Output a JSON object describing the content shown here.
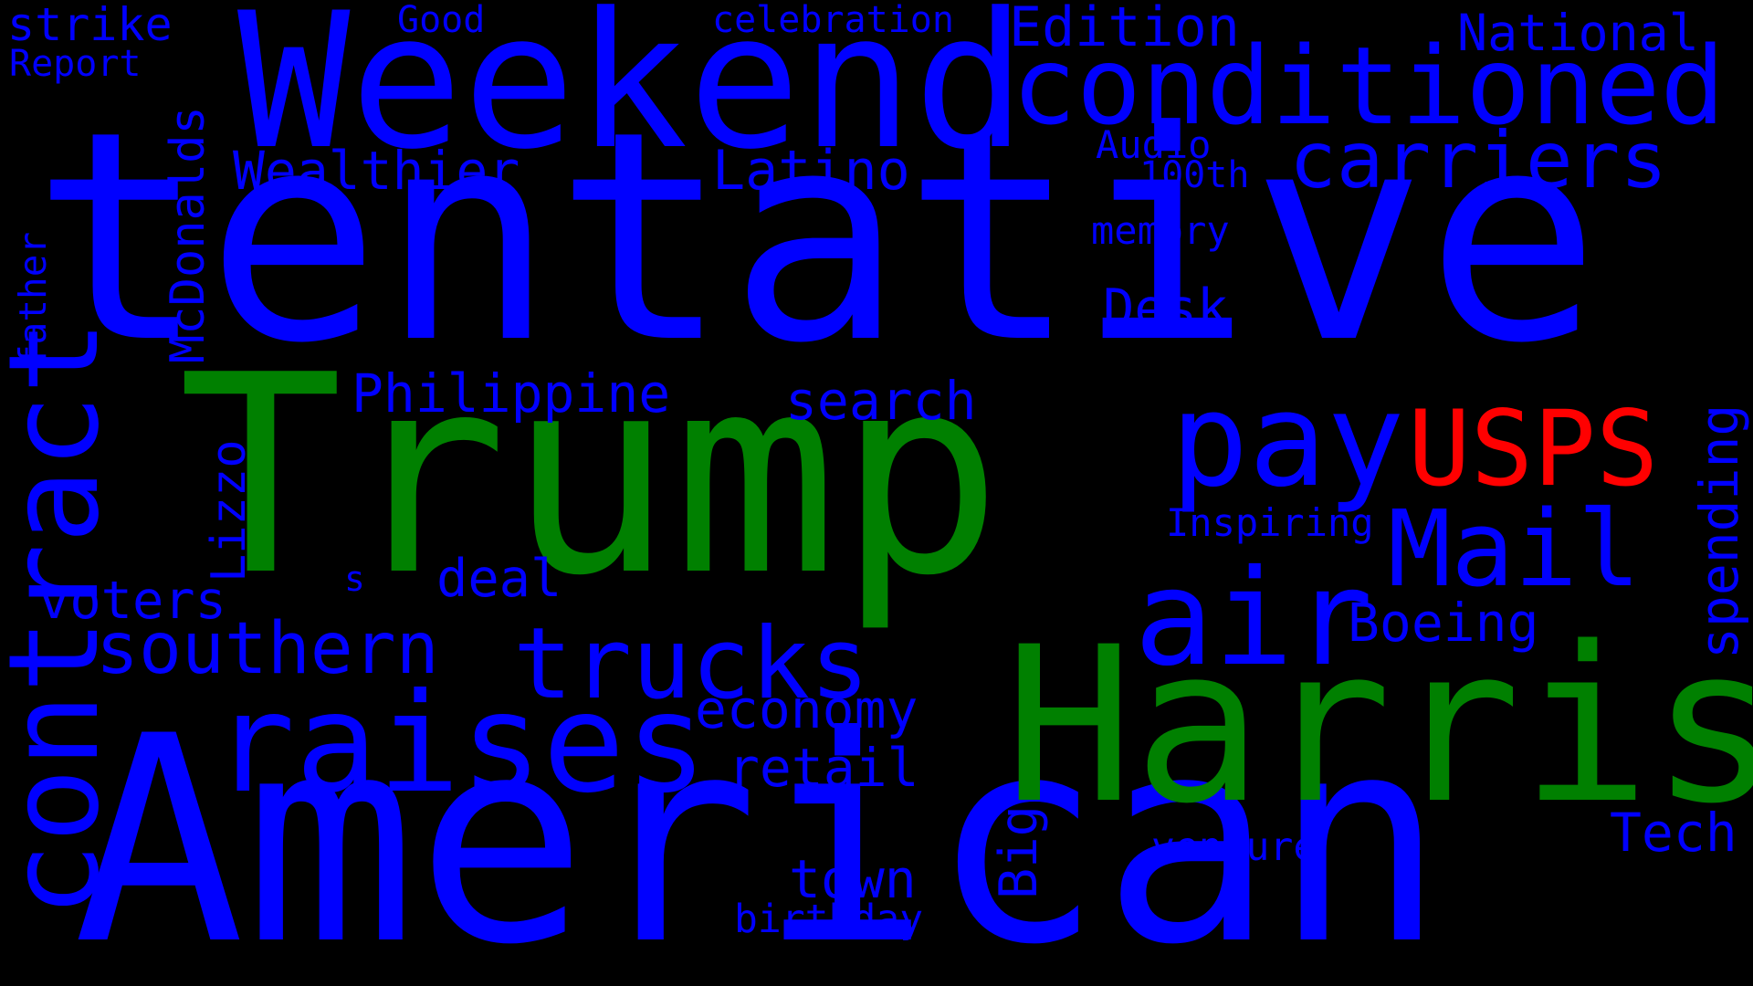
{
  "colors": {
    "background": "#000000",
    "default": "#0000FF",
    "highlight_green": "#008000",
    "highlight_red": "#FF0000"
  },
  "words": [
    {
      "id": "tentative",
      "text": "tentative",
      "color": "#0000FF",
      "vertical": false
    },
    {
      "id": "american",
      "text": "American",
      "color": "#0000FF",
      "vertical": false
    },
    {
      "id": "trump",
      "text": "Trump",
      "color": "#008000",
      "vertical": false
    },
    {
      "id": "harris",
      "text": "Harris",
      "color": "#008000",
      "vertical": false
    },
    {
      "id": "weekend",
      "text": "Weekend",
      "color": "#0000FF",
      "vertical": false
    },
    {
      "id": "conditioned",
      "text": "conditioned",
      "color": "#0000FF",
      "vertical": false
    },
    {
      "id": "contract",
      "text": "contract",
      "color": "#0000FF",
      "vertical": true
    },
    {
      "id": "raises",
      "text": "raises",
      "color": "#0000FF",
      "vertical": false
    },
    {
      "id": "air",
      "text": "air",
      "color": "#0000FF",
      "vertical": false
    },
    {
      "id": "pay",
      "text": "pay",
      "color": "#0000FF",
      "vertical": false
    },
    {
      "id": "usps",
      "text": "USPS",
      "color": "#FF0000",
      "vertical": false
    },
    {
      "id": "mail",
      "text": "Mail",
      "color": "#0000FF",
      "vertical": false
    },
    {
      "id": "trucks",
      "text": "trucks",
      "color": "#0000FF",
      "vertical": false
    },
    {
      "id": "carriers",
      "text": "carriers",
      "color": "#0000FF",
      "vertical": false
    },
    {
      "id": "southern",
      "text": "southern",
      "color": "#0000FF",
      "vertical": false
    },
    {
      "id": "edition",
      "text": "Edition",
      "color": "#0000FF",
      "vertical": false
    },
    {
      "id": "national",
      "text": "National",
      "color": "#0000FF",
      "vertical": false
    },
    {
      "id": "strike",
      "text": "strike",
      "color": "#0000FF",
      "vertical": false
    },
    {
      "id": "report",
      "text": "Report",
      "color": "#0000FF",
      "vertical": false
    },
    {
      "id": "good",
      "text": "Good",
      "color": "#0000FF",
      "vertical": false
    },
    {
      "id": "celebration",
      "text": "celebration",
      "color": "#0000FF",
      "vertical": false
    },
    {
      "id": "wealthier",
      "text": "Wealthier",
      "color": "#0000FF",
      "vertical": false
    },
    {
      "id": "latino",
      "text": "Latino",
      "color": "#0000FF",
      "vertical": false
    },
    {
      "id": "audio",
      "text": "Audio",
      "color": "#0000FF",
      "vertical": false
    },
    {
      "id": "100th",
      "text": "100th",
      "color": "#0000FF",
      "vertical": false
    },
    {
      "id": "memory",
      "text": "memory",
      "color": "#0000FF",
      "vertical": false
    },
    {
      "id": "desk",
      "text": "Desk",
      "color": "#0000FF",
      "vertical": false
    },
    {
      "id": "mcdonalds",
      "text": "McDonalds",
      "color": "#0000FF",
      "vertical": true
    },
    {
      "id": "father",
      "text": "father",
      "color": "#0000FF",
      "vertical": true
    },
    {
      "id": "philippine",
      "text": "Philippine",
      "color": "#0000FF",
      "vertical": false
    },
    {
      "id": "search",
      "text": "search",
      "color": "#0000FF",
      "vertical": false
    },
    {
      "id": "lizzo",
      "text": "Lizzo",
      "color": "#0000FF",
      "vertical": true
    },
    {
      "id": "voters",
      "text": "voters",
      "color": "#0000FF",
      "vertical": false
    },
    {
      "id": "s",
      "text": "s",
      "color": "#0000FF",
      "vertical": false
    },
    {
      "id": "deal",
      "text": "deal",
      "color": "#0000FF",
      "vertical": false
    },
    {
      "id": "inspiring",
      "text": "Inspiring",
      "color": "#0000FF",
      "vertical": false
    },
    {
      "id": "boeing",
      "text": "Boeing",
      "color": "#0000FF",
      "vertical": false
    },
    {
      "id": "spending",
      "text": "spending",
      "color": "#0000FF",
      "vertical": true
    },
    {
      "id": "economy",
      "text": "economy",
      "color": "#0000FF",
      "vertical": false
    },
    {
      "id": "retail",
      "text": "retail",
      "color": "#0000FF",
      "vertical": false
    },
    {
      "id": "big",
      "text": "Big",
      "color": "#0000FF",
      "vertical": true
    },
    {
      "id": "tech",
      "text": "Tech",
      "color": "#0000FF",
      "vertical": false
    },
    {
      "id": "venture",
      "text": "venture",
      "color": "#0000FF",
      "vertical": false
    },
    {
      "id": "town",
      "text": "town",
      "color": "#0000FF",
      "vertical": false
    },
    {
      "id": "birthday",
      "text": "birthday",
      "color": "#0000FF",
      "vertical": false
    }
  ]
}
